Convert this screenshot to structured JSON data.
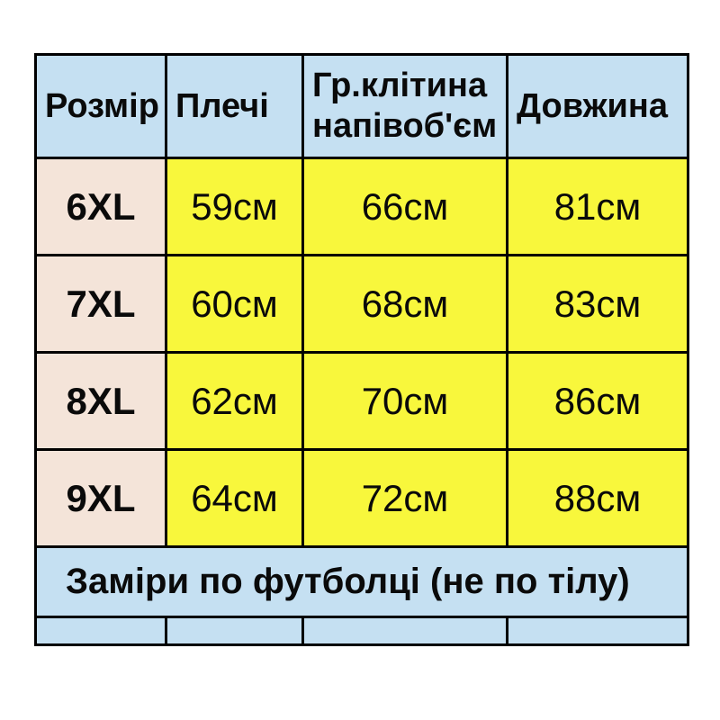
{
  "colors": {
    "page_background": "#ffffff",
    "header_bg": "#c5e0f2",
    "size_column_bg": "#f4e4d9",
    "value_cell_bg": "#f8f73c",
    "border": "#000000",
    "text": "#0a0a0a"
  },
  "size_chart": {
    "headers": [
      "Розмір",
      "Плечі",
      "Гр.клітина напівоб'єм",
      "Довжина"
    ],
    "rows": [
      {
        "size": "6XL",
        "values": [
          "59см",
          "66см",
          "81см"
        ]
      },
      {
        "size": "7XL",
        "values": [
          "60см",
          "68см",
          "83см"
        ]
      },
      {
        "size": "8XL",
        "values": [
          "62см",
          "70см",
          "86см"
        ]
      },
      {
        "size": "9XL",
        "values": [
          "64см",
          "72см",
          "88см"
        ]
      }
    ],
    "footer_note": "Заміри по футболці (не по тілу)"
  }
}
